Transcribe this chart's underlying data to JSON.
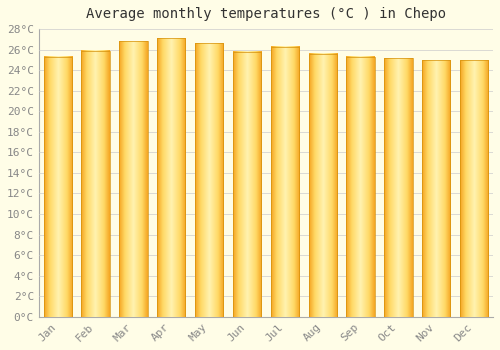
{
  "title": "Average monthly temperatures (°C ) in Chepo",
  "months": [
    "Jan",
    "Feb",
    "Mar",
    "Apr",
    "May",
    "Jun",
    "Jul",
    "Aug",
    "Sep",
    "Oct",
    "Nov",
    "Dec"
  ],
  "values": [
    25.3,
    25.9,
    26.8,
    27.1,
    26.6,
    25.8,
    26.3,
    25.6,
    25.3,
    25.2,
    25.0,
    25.0
  ],
  "bar_color_outer": "#F5A623",
  "bar_color_inner": "#FFD966",
  "bar_color_center": "#FFF2B0",
  "background_color": "#FFFDE7",
  "grid_color": "#CCCCCC",
  "ylim": [
    0,
    28
  ],
  "ytick_step": 2,
  "title_fontsize": 10,
  "tick_fontsize": 8,
  "tick_color": "#888888",
  "title_color": "#333333",
  "title_font": "monospace",
  "bar_width": 0.75
}
